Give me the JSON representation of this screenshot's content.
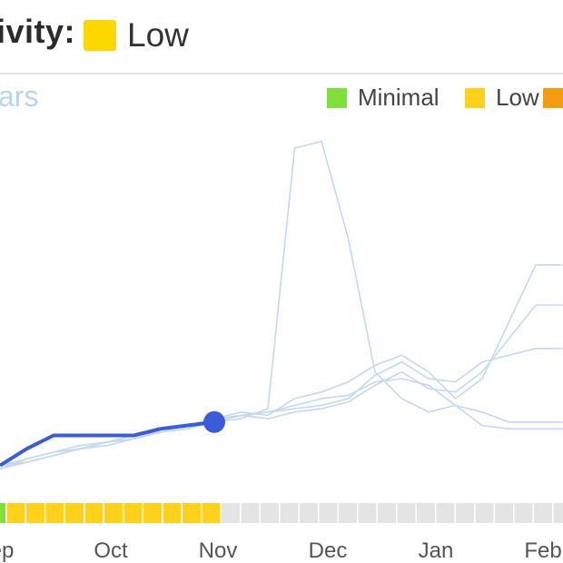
{
  "header": {
    "activity_label": "ivity:",
    "activity_level": "Low",
    "activity_color": "#FFD700"
  },
  "chart_title_fragment": "ars",
  "legend": [
    {
      "label": "Minimal",
      "color": "#7FE03A"
    },
    {
      "label": "Low",
      "color": "#FFD11A"
    },
    {
      "label": "",
      "color": "#F39C12"
    }
  ],
  "chart_data": {
    "type": "line",
    "x_labels": [
      "ep",
      "Oct",
      "Nov",
      "Dec",
      "Jan",
      "Feb"
    ],
    "x": [
      "Sep",
      "Sep",
      "Sep",
      "Oct",
      "Oct",
      "Oct",
      "Oct",
      "Nov",
      "Nov",
      "Nov",
      "Nov",
      "Dec",
      "Dec",
      "Dec",
      "Dec",
      "Jan",
      "Jan",
      "Jan",
      "Jan",
      "Feb",
      "Feb",
      "Feb"
    ],
    "y_range": [
      0,
      100
    ],
    "current_series": {
      "name": "",
      "values": [
        2,
        7,
        11,
        11,
        11,
        11,
        13,
        14,
        15
      ],
      "color": "#3B5BDB"
    },
    "past_series": [
      {
        "values": [
          1,
          4,
          6,
          8,
          9,
          11,
          12,
          13,
          15,
          16,
          19,
          97,
          99,
          70,
          30,
          22,
          18,
          20,
          18,
          15,
          15,
          15
        ]
      },
      {
        "values": [
          1,
          3,
          5,
          7,
          9,
          10,
          12,
          14,
          16,
          17,
          18,
          20,
          22,
          23,
          27,
          28,
          26,
          20,
          14,
          13,
          13,
          13
        ]
      },
      {
        "values": [
          2,
          4,
          6,
          7,
          9,
          11,
          13,
          14,
          16,
          18,
          17,
          22,
          24,
          27,
          32,
          35,
          30,
          22,
          28,
          45,
          62,
          62
        ]
      },
      {
        "values": [
          1,
          3,
          5,
          7,
          8,
          10,
          12,
          13,
          15,
          17,
          16,
          18,
          19,
          21,
          26,
          30,
          25,
          24,
          30,
          40,
          50,
          50
        ]
      },
      {
        "values": [
          2,
          3,
          5,
          7,
          9,
          10,
          12,
          14,
          15,
          17,
          18,
          19,
          20,
          22,
          29,
          33,
          28,
          27,
          33,
          35,
          37,
          37
        ]
      }
    ],
    "activity_strip": [
      "Minimal",
      "Low",
      "Low",
      "Low",
      "Low",
      "Low",
      "Low",
      "Low",
      "Low",
      "Low",
      "Low",
      "Low",
      "",
      "",
      "",
      "",
      "",
      "",
      "",
      "",
      "",
      "",
      "",
      "",
      "",
      "",
      "",
      "",
      "",
      "",
      ""
    ],
    "strip_colors": {
      "Minimal": "#7FE03A",
      "Low": "#FFD11A",
      "": "#E4E4E4"
    }
  }
}
